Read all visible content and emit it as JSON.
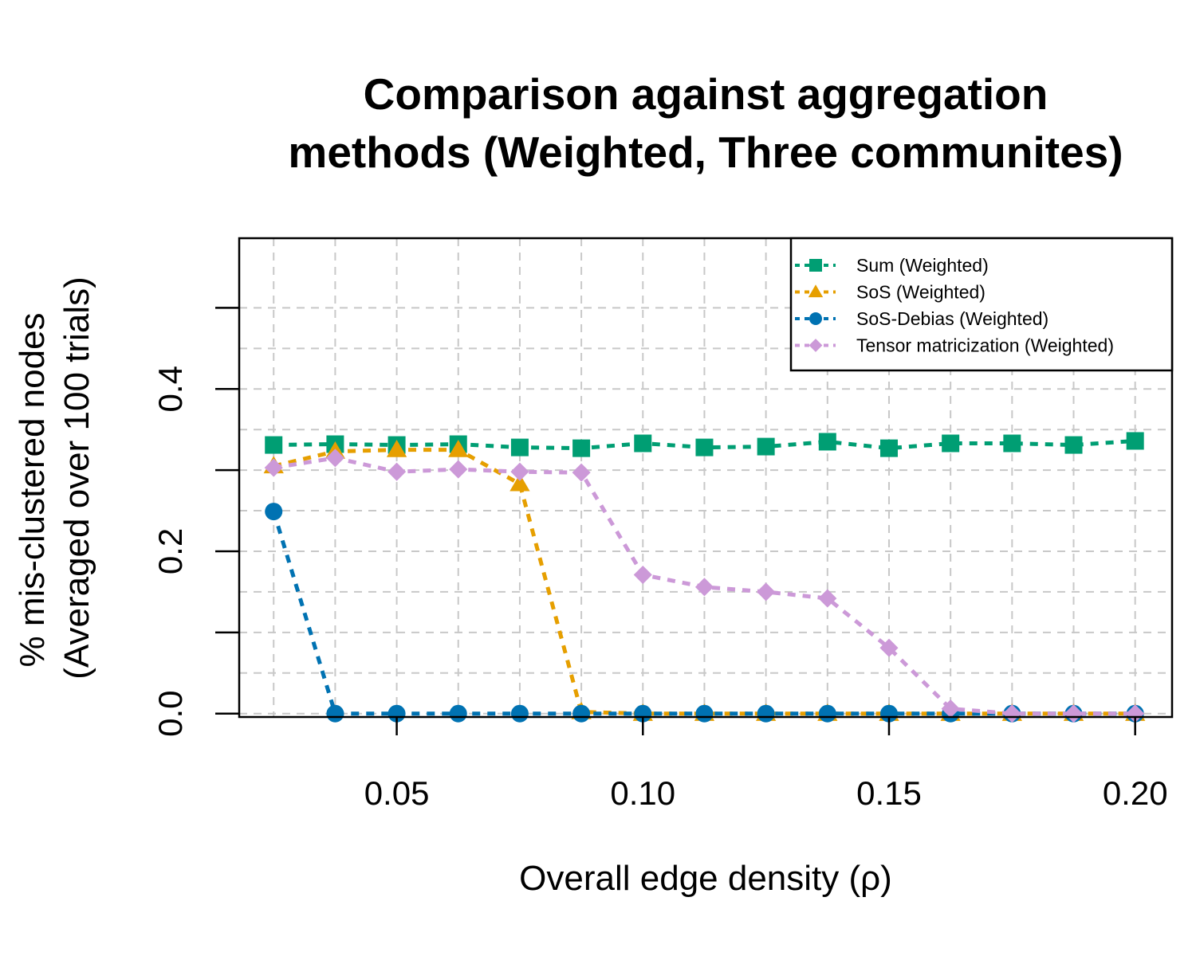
{
  "chart_data": {
    "type": "line",
    "title_lines": [
      "Comparison against aggregation",
      "methods (Weighted, Three communites)"
    ],
    "xlabel": "Overall edge density (ρ)",
    "ylabel_lines": [
      "% mis-clustered nodes",
      "(Averaged over 100 trials)"
    ],
    "xlim": [
      0.018,
      0.2075
    ],
    "ylim": [
      -0.0042,
      0.5858
    ],
    "x_ticks": [
      {
        "value": 0.05,
        "label": "0.05"
      },
      {
        "value": 0.1,
        "label": "0.10"
      },
      {
        "value": 0.15,
        "label": "0.15"
      },
      {
        "value": 0.2,
        "label": "0.20"
      }
    ],
    "y_ticks": [
      {
        "value": 0.0,
        "label": "0.0"
      },
      {
        "value": 0.1,
        "label": ""
      },
      {
        "value": 0.2,
        "label": "0.2"
      },
      {
        "value": 0.3,
        "label": ""
      },
      {
        "value": 0.4,
        "label": "0.4"
      },
      {
        "value": 0.5,
        "label": ""
      }
    ],
    "grid": true,
    "grid_x": [
      0.025,
      0.0375,
      0.05,
      0.0625,
      0.075,
      0.0875,
      0.1,
      0.1125,
      0.125,
      0.1375,
      0.15,
      0.1625,
      0.175,
      0.1875,
      0.2
    ],
    "grid_y": [
      0.0,
      0.05,
      0.1,
      0.15,
      0.2,
      0.25,
      0.3,
      0.35,
      0.4,
      0.45,
      0.5
    ],
    "legend_position": "top-right",
    "x": [
      0.025,
      0.0375,
      0.05,
      0.0625,
      0.075,
      0.0875,
      0.1,
      0.1125,
      0.125,
      0.1375,
      0.15,
      0.1625,
      0.175,
      0.1875,
      0.2
    ],
    "series": [
      {
        "name": "Sum (Weighted)",
        "color": "#009E73",
        "marker": "square",
        "values": [
          0.331,
          0.332,
          0.331,
          0.332,
          0.328,
          0.327,
          0.333,
          0.328,
          0.329,
          0.335,
          0.327,
          0.333,
          0.333,
          0.331,
          0.336
        ]
      },
      {
        "name": "SoS (Weighted)",
        "color": "#E69F00",
        "marker": "triangle",
        "values": [
          0.305,
          0.323,
          0.325,
          0.325,
          0.283,
          0.002,
          0.0,
          0.0,
          0.0,
          0.0,
          0.0,
          0.0,
          0.0,
          0.0,
          0.0
        ]
      },
      {
        "name": "SoS-Debias (Weighted)",
        "color": "#0072B2",
        "marker": "circle",
        "values": [
          0.249,
          0.0,
          0.0,
          0.0,
          0.0,
          0.0,
          0.0,
          0.0,
          0.0,
          0.0,
          0.0,
          0.0,
          0.0,
          0.0,
          0.0
        ]
      },
      {
        "name": "Tensor matricization (Weighted)",
        "color": "#CC99D8",
        "marker": "diamond",
        "values": [
          0.303,
          0.315,
          0.298,
          0.301,
          0.298,
          0.297,
          0.171,
          0.156,
          0.15,
          0.142,
          0.081,
          0.006,
          0.0,
          0.0,
          0.0
        ]
      }
    ]
  }
}
